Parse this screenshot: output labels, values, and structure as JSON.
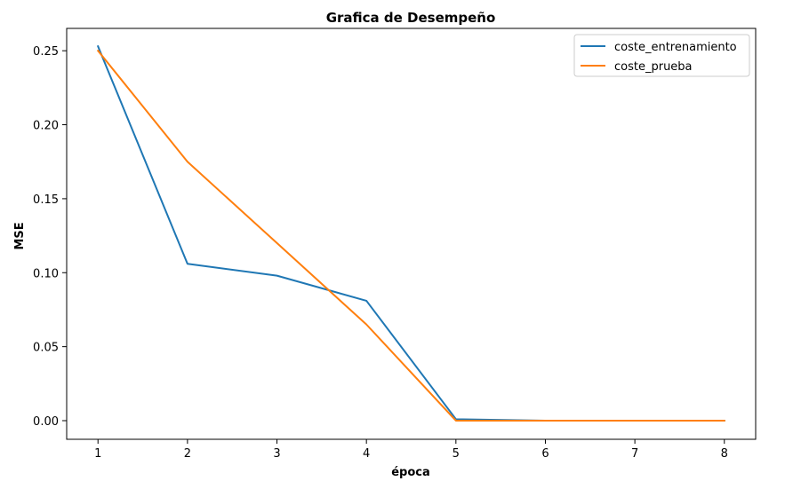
{
  "chart_data": {
    "type": "line",
    "title": "Grafica de Desempeño",
    "xlabel": "época",
    "ylabel": "MSE",
    "x": [
      1,
      2,
      3,
      4,
      5,
      6,
      7,
      8
    ],
    "xlim": [
      0.65,
      8.35
    ],
    "ylim": [
      -0.0126,
      0.2651
    ],
    "xticks": [
      1,
      2,
      3,
      4,
      5,
      6,
      7,
      8
    ],
    "yticks": [
      0.0,
      0.05,
      0.1,
      0.15,
      0.2,
      0.25
    ],
    "ytick_labels": [
      "0.00",
      "0.05",
      "0.10",
      "0.15",
      "0.20",
      "0.25"
    ],
    "grid": false,
    "legend_position": "top-right",
    "series": [
      {
        "name": "coste_entrenamiento",
        "color": "#1f77b4",
        "values": [
          0.253,
          0.106,
          0.098,
          0.081,
          0.001,
          0.0,
          0.0,
          0.0
        ]
      },
      {
        "name": "coste_prueba",
        "color": "#ff7f0e",
        "values": [
          0.25,
          0.175,
          0.12,
          0.065,
          0.0,
          0.0,
          0.0,
          0.0
        ]
      }
    ]
  }
}
